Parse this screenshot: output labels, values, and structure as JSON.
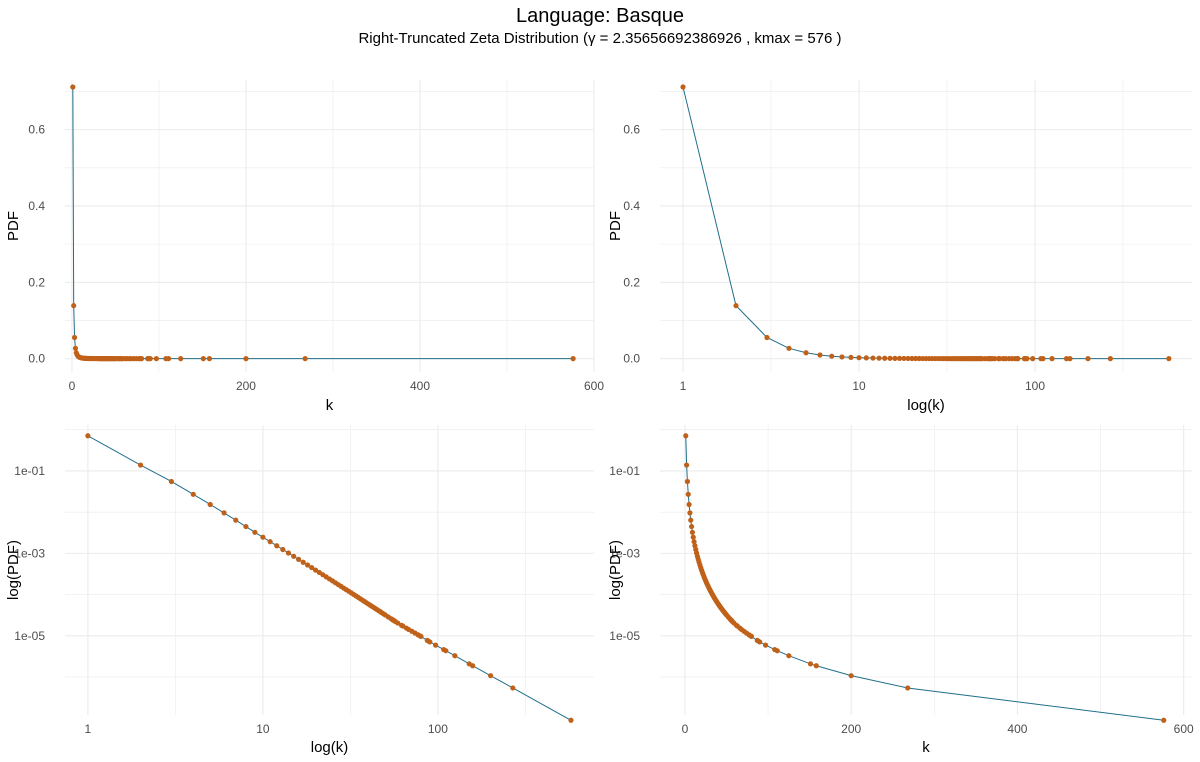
{
  "header": {
    "title": "Language:  Basque",
    "subtitle": "Right-Truncated Zeta Distribution (γ = 2.35656692386926 , kmax = 576 )"
  },
  "colors": {
    "line": "#1f6f8b",
    "point": "#c0611a",
    "grid": "#ebebeb",
    "tick_text": "#4d4d4d"
  },
  "chart_data": [
    {
      "type": "line",
      "xscale": "linear",
      "yscale": "linear",
      "xlabel": "k",
      "ylabel": "PDF",
      "xlim": [
        -8,
        600
      ],
      "ylim": [
        -0.035,
        0.73
      ],
      "xticks": [
        0,
        200,
        400,
        600
      ],
      "xtick_labels": [
        "0",
        "200",
        "400",
        "600"
      ],
      "yticks": [
        0,
        0.2,
        0.4,
        0.6
      ],
      "ytick_labels": [
        "0.0",
        "0.2",
        "0.4",
        "0.6"
      ],
      "xminor": [
        100,
        300,
        500
      ],
      "yminor": [
        0.1,
        0.3,
        0.5,
        0.7
      ],
      "series_ref": "pmf"
    },
    {
      "type": "line",
      "xscale": "log",
      "yscale": "linear",
      "xlabel": "log(k)",
      "ylabel": "PDF",
      "xlim": [
        0.74,
        780
      ],
      "ylim": [
        -0.035,
        0.73
      ],
      "xticks": [
        1,
        10,
        100
      ],
      "xtick_labels": [
        "1",
        "10",
        "100"
      ],
      "yticks": [
        0,
        0.2,
        0.4,
        0.6
      ],
      "ytick_labels": [
        "0.0",
        "0.2",
        "0.4",
        "0.6"
      ],
      "xminor": [
        3.16,
        31.6,
        316
      ],
      "yminor": [
        0.1,
        0.3,
        0.5,
        0.7
      ],
      "series_ref": "pmf"
    },
    {
      "type": "line",
      "xscale": "log",
      "yscale": "log",
      "xlabel": "log(k)",
      "ylabel": "log(PDF)",
      "xlim": [
        0.74,
        780
      ],
      "ylim": [
        1.2e-07,
        1.3
      ],
      "xticks": [
        1,
        10,
        100
      ],
      "xtick_labels": [
        "1",
        "10",
        "100"
      ],
      "yticks": [
        0.1,
        0.001,
        1e-05
      ],
      "ytick_labels": [
        "1e-01",
        "1e-03",
        "1e-05"
      ],
      "xminor": [
        3.16,
        31.6,
        316
      ],
      "yminor": [
        1,
        0.01,
        0.0001,
        1e-06
      ],
      "series_ref": "pmf"
    },
    {
      "type": "line",
      "xscale": "linear",
      "yscale": "log",
      "xlabel": "k",
      "ylabel": "log(PDF)",
      "xlim": [
        -30,
        610
      ],
      "ylim": [
        1.2e-07,
        1.3
      ],
      "xticks": [
        0,
        200,
        400,
        600
      ],
      "xtick_labels": [
        "0",
        "200",
        "400",
        "600"
      ],
      "yticks": [
        0.1,
        0.001,
        1e-05
      ],
      "ytick_labels": [
        "1e-01",
        "1e-03",
        "1e-05"
      ],
      "xminor": [
        100,
        300,
        500
      ],
      "yminor": [
        1,
        0.01,
        0.0001,
        1e-06
      ],
      "series_ref": "pmf"
    }
  ],
  "pmf": {
    "k": [
      1,
      2,
      3,
      4,
      5,
      6,
      7,
      8,
      9,
      10,
      11,
      12,
      13,
      14,
      15,
      16,
      17,
      18,
      19,
      20,
      21,
      22,
      23,
      24,
      25,
      26,
      27,
      28,
      29,
      30,
      31,
      32,
      33,
      34,
      35,
      36,
      37,
      38,
      39,
      40,
      41,
      42,
      43,
      44,
      45,
      46,
      47,
      48,
      49,
      50,
      52,
      54,
      55,
      56,
      57,
      59,
      62,
      63,
      66,
      68,
      71,
      74,
      77,
      79,
      80,
      87,
      88,
      90,
      97,
      108,
      111,
      125,
      151,
      158,
      200,
      268,
      576
    ],
    "pdf": [
      0.7117,
      0.1388,
      0.05541,
      0.02707,
      0.01534,
      0.009591,
      0.006391,
      0.00447,
      0.003245,
      0.002468,
      0.001924,
      0.001532,
      0.001242,
      0.00102,
      0.000849,
      0.000716,
      0.000609,
      0.000522,
      0.000452,
      0.000393,
      0.000345,
      0.000304,
      0.000269,
      0.00024,
      0.000215,
      0.000193,
      0.000174,
      0.000158,
      0.000143,
      0.000131,
      0.00012,
      0.00011,
      0.000101,
      9.29e-05,
      8.58e-05,
      7.94e-05,
      7.36e-05,
      6.84e-05,
      6.37e-05,
      5.94e-05,
      5.55e-05,
      5.19e-05,
      4.87e-05,
      4.57e-05,
      4.3e-05,
      4.04e-05,
      3.81e-05,
      3.59e-05,
      3.39e-05,
      3.21e-05,
      2.88e-05,
      2.6e-05,
      2.47e-05,
      2.35e-05,
      2.24e-05,
      2.04e-05,
      1.8e-05,
      1.73e-05,
      1.54e-05,
      1.43e-05,
      1.29e-05,
      1.17e-05,
      1.06e-05,
      1e-05,
      9.7e-06,
      7.74e-06,
      7.51e-06,
      7.11e-06,
      5.95e-06,
      4.64e-06,
      4.35e-06,
      3.29e-06,
      2.09e-06,
      1.88e-06,
      1.08e-06,
      5.43e-07,
      8.94e-08
    ]
  }
}
